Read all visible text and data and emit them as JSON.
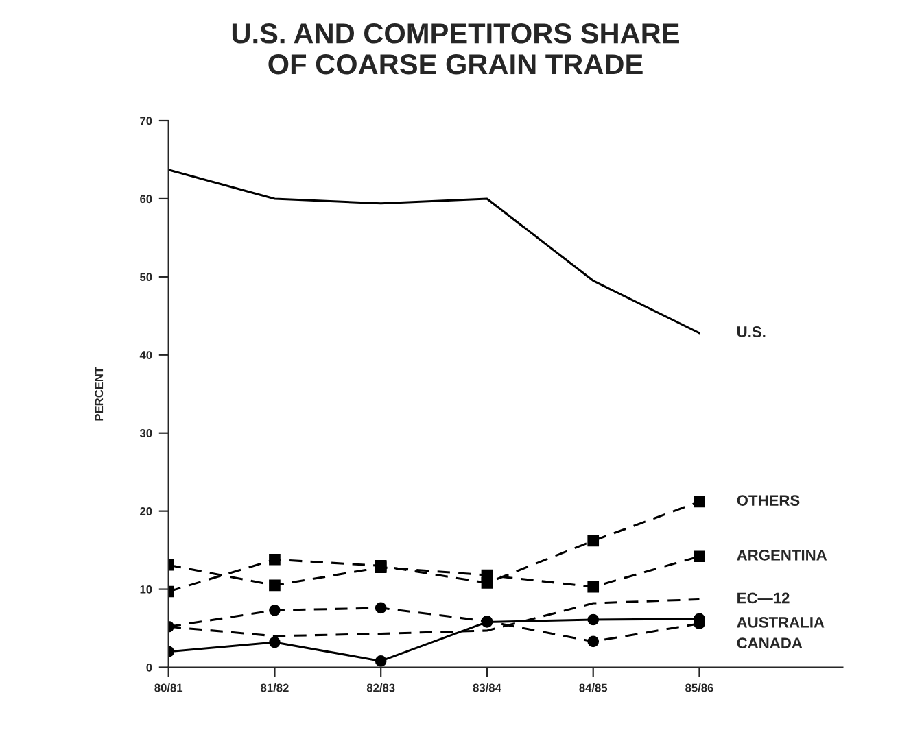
{
  "chart_data": {
    "type": "line",
    "title": "U.S. AND COMPETITORS SHARE\nOF COARSE GRAIN TRADE",
    "ylabel": "PERCENT",
    "categories": [
      "80/81",
      "81/82",
      "82/83",
      "83/84",
      "84/85",
      "85/86"
    ],
    "ylim": [
      0,
      70
    ],
    "yticks": [
      0,
      10,
      20,
      30,
      40,
      50,
      60,
      70
    ],
    "grid": false,
    "legend": false,
    "series": [
      {
        "name": "U.S.",
        "color": "#000000",
        "line_style": "solid",
        "marker": "none",
        "values": [
          63.7,
          60,
          59.4,
          60,
          49.5,
          42.8
        ]
      },
      {
        "name": "OTHERS",
        "color": "#000000",
        "line_style": "dashed",
        "marker": "square",
        "values": [
          9.7,
          13.8,
          13,
          10.8,
          16.2,
          21.2
        ]
      },
      {
        "name": "ARGENTINA",
        "color": "#000000",
        "line_style": "dashed",
        "marker": "square",
        "values": [
          13.1,
          10.5,
          12.8,
          11.8,
          10.3,
          14.2
        ]
      },
      {
        "name": "EC—12",
        "color": "#000000",
        "line_style": "dashed",
        "marker": "none",
        "values": [
          5.2,
          4.0,
          4.3,
          4.7,
          8.2,
          8.7
        ]
      },
      {
        "name": "AUSTRALIA",
        "color": "#000000",
        "line_style": "dashed",
        "marker": "circle",
        "values": [
          5.2,
          7.3,
          7.6,
          5.9,
          3.3,
          5.6
        ]
      },
      {
        "name": "CANADA",
        "color": "#000000",
        "line_style": "solid",
        "marker": "circle",
        "values": [
          2.0,
          3.2,
          0.8,
          5.8,
          6.1,
          6.2
        ]
      }
    ]
  }
}
